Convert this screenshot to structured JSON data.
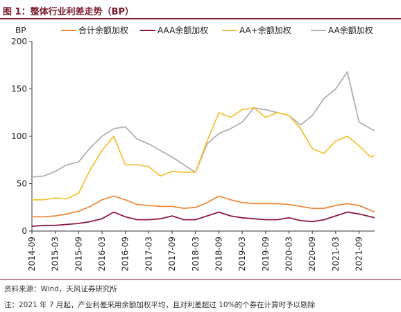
{
  "figure": {
    "title": "图 1：整体行业利差走势（BP）",
    "source": "资料来源：Wind，天风证券研究所",
    "note": "注：2021 年 7 月起，产业利差采用余额加权平均，且对利差超过 10%的个券在计算时予以剔除"
  },
  "colors": {
    "title": "#7a1b2c",
    "total": "#ee8a3c",
    "AAA": "#8b1a3c",
    "AAplus": "#f5c23a",
    "AA": "#b0b0b0"
  },
  "chart_data": {
    "type": "line",
    "title": "",
    "ylabel": "BP",
    "xlabel": "",
    "ylim": [
      0,
      200
    ],
    "yticks": [
      0,
      50,
      100,
      150,
      200
    ],
    "grid": false,
    "legend": "top",
    "x_tick_labels": [
      "2014-09",
      "2015-03",
      "2015-09",
      "2016-03",
      "2016-09",
      "2017-03",
      "2017-09",
      "2018-03",
      "2018-09",
      "2019-03",
      "2019-09",
      "2020-03",
      "2020-09",
      "2021-03",
      "2021-09"
    ],
    "x_range": [
      "2014-09",
      "2022-01"
    ],
    "series": [
      {
        "name": "合计余额加权",
        "color_key": "total",
        "x": [
          "2014-09",
          "2014-12",
          "2015-03",
          "2015-06",
          "2015-09",
          "2015-12",
          "2016-03",
          "2016-06",
          "2016-09",
          "2016-12",
          "2017-03",
          "2017-06",
          "2017-09",
          "2017-12",
          "2018-03",
          "2018-06",
          "2018-09",
          "2018-12",
          "2019-03",
          "2019-06",
          "2019-09",
          "2019-12",
          "2020-03",
          "2020-06",
          "2020-09",
          "2020-12",
          "2021-03",
          "2021-06",
          "2021-09",
          "2021-12",
          "2022-01"
        ],
        "values": [
          15,
          15,
          16,
          18,
          21,
          26,
          33,
          37,
          33,
          28,
          27,
          26,
          26,
          24,
          25,
          30,
          37,
          33,
          30,
          29,
          29,
          29,
          28,
          26,
          24,
          24,
          27,
          29,
          27,
          22,
          20
        ]
      },
      {
        "name": "AAA余额加权",
        "color_key": "AAA",
        "x": [
          "2014-09",
          "2014-12",
          "2015-03",
          "2015-06",
          "2015-09",
          "2015-12",
          "2016-03",
          "2016-06",
          "2016-09",
          "2016-12",
          "2017-03",
          "2017-06",
          "2017-09",
          "2017-12",
          "2018-03",
          "2018-06",
          "2018-09",
          "2018-12",
          "2019-03",
          "2019-06",
          "2019-09",
          "2019-12",
          "2020-03",
          "2020-06",
          "2020-09",
          "2020-12",
          "2021-03",
          "2021-06",
          "2021-09",
          "2021-12",
          "2022-01"
        ],
        "values": [
          5,
          6,
          6,
          7,
          8,
          10,
          13,
          20,
          15,
          12,
          12,
          13,
          16,
          12,
          12,
          16,
          20,
          16,
          14,
          13,
          12,
          12,
          14,
          11,
          10,
          12,
          16,
          20,
          18,
          15,
          14
        ]
      },
      {
        "name": "AA+余额加权",
        "color_key": "AAplus",
        "x": [
          "2014-09",
          "2014-12",
          "2015-03",
          "2015-06",
          "2015-09",
          "2015-12",
          "2016-03",
          "2016-06",
          "2016-09",
          "2016-12",
          "2017-03",
          "2017-06",
          "2017-09",
          "2017-12",
          "2018-03",
          "2018-06",
          "2018-09",
          "2018-12",
          "2019-03",
          "2019-06",
          "2019-09",
          "2019-12",
          "2020-03",
          "2020-06",
          "2020-09",
          "2020-12",
          "2021-03",
          "2021-06",
          "2021-09",
          "2021-12",
          "2022-01"
        ],
        "values": [
          33,
          33,
          35,
          34,
          40,
          65,
          85,
          100,
          70,
          70,
          68,
          58,
          63,
          62,
          62,
          95,
          125,
          120,
          128,
          130,
          120,
          125,
          122,
          108,
          87,
          82,
          95,
          100,
          90,
          78,
          80
        ]
      },
      {
        "name": "AA余额加权",
        "color_key": "AA",
        "x": [
          "2014-09",
          "2014-12",
          "2015-03",
          "2015-06",
          "2015-09",
          "2015-12",
          "2016-03",
          "2016-06",
          "2016-09",
          "2016-12",
          "2017-03",
          "2017-06",
          "2017-09",
          "2017-12",
          "2018-03",
          "2018-06",
          "2018-09",
          "2018-12",
          "2019-03",
          "2019-06",
          "2019-09",
          "2019-12",
          "2020-03",
          "2020-06",
          "2020-09",
          "2020-12",
          "2021-03",
          "2021-06",
          "2021-09",
          "2021-12",
          "2022-01"
        ],
        "values": [
          57,
          58,
          63,
          70,
          73,
          88,
          100,
          108,
          110,
          97,
          92,
          85,
          78,
          70,
          62,
          92,
          103,
          108,
          115,
          130,
          128,
          125,
          122,
          112,
          122,
          140,
          150,
          168,
          115,
          108,
          106
        ]
      }
    ]
  }
}
